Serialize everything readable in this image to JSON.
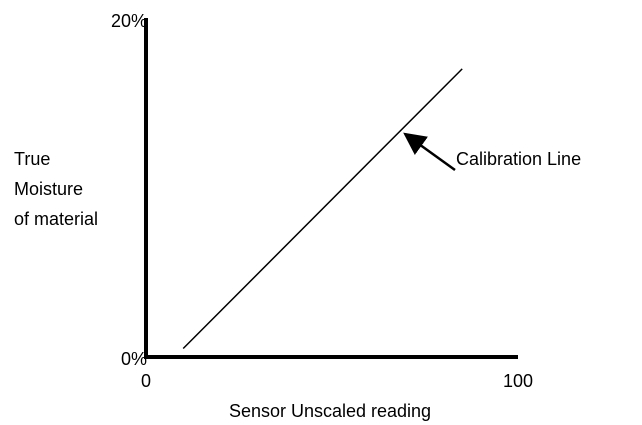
{
  "chart_data": {
    "type": "line",
    "ylabel_lines": [
      "True",
      "Moisture",
      "of material"
    ],
    "xlabel": "Sensor Unscaled reading",
    "x": [
      10,
      85
    ],
    "values": [
      0.5,
      17
    ],
    "color": "#000000",
    "xlim": [
      0,
      100
    ],
    "xticks": [
      0,
      100
    ],
    "ylim": [
      0,
      20
    ],
    "yticks": [
      {
        "value": 0,
        "label": "0%"
      },
      {
        "value": 20,
        "label": "20%"
      }
    ],
    "grid": false,
    "annotation": "Calibration Line"
  }
}
